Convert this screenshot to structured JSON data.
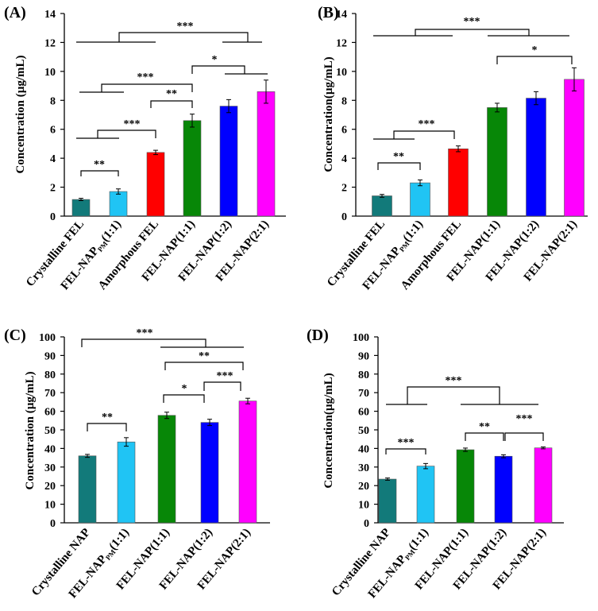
{
  "chart_data": [
    {
      "type": "bar",
      "panel_label": "(A)",
      "ylabel": "Concentration (µg/mL)",
      "ylim": [
        0,
        14
      ],
      "yticks": [
        "0",
        "2",
        "4",
        "6",
        "8",
        "10",
        "12",
        "14"
      ],
      "categories": [
        "Crystalline FEL",
        "FEL-NAP",
        "Amorphous FEL",
        "FEL-NAP(1:1)",
        "FEL-NAP(1:2)",
        "FEL-NAP(2:1)"
      ],
      "values": [
        1.15,
        1.7,
        4.4,
        6.6,
        7.6,
        8.6
      ],
      "errors": [
        0.08,
        0.18,
        0.15,
        0.45,
        0.45,
        0.8
      ],
      "colors": [
        "#127a7a",
        "#20c4f4",
        "#ff0000",
        "#078707",
        "#0000ff",
        "#ff00ff"
      ],
      "significance": [
        "**",
        "***",
        "**",
        "***",
        "*",
        "***"
      ]
    },
    {
      "type": "bar",
      "panel_label": "(B)",
      "ylabel": "Concentration(µg/mL)",
      "ylim": [
        0,
        14
      ],
      "yticks": [
        "0",
        "2",
        "4",
        "6",
        "8",
        "10",
        "12",
        "14"
      ],
      "categories": [
        "Crystalline FEL",
        "FEL-NAP",
        "Amorphous FEL",
        "FEL-NAP(1:1)",
        "FEL-NAP(1:2)",
        "FEL-NAP(2:1)"
      ],
      "values": [
        1.4,
        2.3,
        4.65,
        7.5,
        8.15,
        9.45
      ],
      "errors": [
        0.1,
        0.2,
        0.2,
        0.3,
        0.45,
        0.8
      ],
      "colors": [
        "#127a7a",
        "#20c4f4",
        "#ff0000",
        "#078707",
        "#0000ff",
        "#ff00ff"
      ],
      "significance": [
        "**",
        "***",
        "*",
        "***"
      ]
    },
    {
      "type": "bar",
      "panel_label": "(C)",
      "ylabel": "Concentration (µg/mL)",
      "ylim": [
        0,
        100
      ],
      "yticks": [
        "0",
        "10",
        "20",
        "30",
        "40",
        "50",
        "60",
        "70",
        "80",
        "90",
        "100"
      ],
      "categories": [
        "Crystalline NAP",
        "FEL-NAP",
        "FEL-NAP(1:1)",
        "FEL-NAP(1:2)",
        "FEL-NAP(2:1)"
      ],
      "values": [
        36,
        43.5,
        57.8,
        54,
        65.5
      ],
      "errors": [
        0.8,
        2.3,
        1.7,
        1.7,
        1.5
      ],
      "colors": [
        "#127a7a",
        "#20c4f4",
        "#078707",
        "#0000ff",
        "#ff00ff"
      ],
      "significance": [
        "**",
        "*",
        "***",
        "**",
        "***"
      ]
    },
    {
      "type": "bar",
      "panel_label": "(D)",
      "ylabel": "Concentration(µg/mL)",
      "ylim": [
        0,
        100
      ],
      "yticks": [
        "0",
        "10",
        "20",
        "30",
        "40",
        "50",
        "60",
        "70",
        "80",
        "90",
        "100"
      ],
      "categories": [
        "Crystalline NAP",
        "FEL-NAP",
        "FEL-NAP(1:1)",
        "FEL-NAP(1:2)",
        "FEL-NAP(2:1)"
      ],
      "values": [
        23.5,
        30.5,
        39.3,
        35.8,
        40.3
      ],
      "errors": [
        0.6,
        1.4,
        0.9,
        0.8,
        0.5
      ],
      "colors": [
        "#127a7a",
        "#20c4f4",
        "#078707",
        "#0000ff",
        "#ff00ff"
      ],
      "significance": [
        "***",
        "**",
        "***",
        "***"
      ]
    }
  ],
  "pm_subscript": "PM",
  "fel_nap_suffix": "(1:1)"
}
